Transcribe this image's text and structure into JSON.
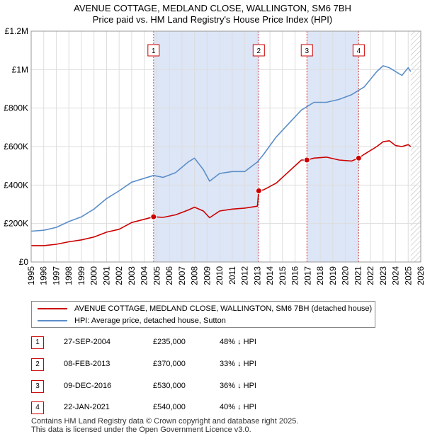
{
  "title_line1": "AVENUE COTTAGE, MEDLAND CLOSE, WALLINGTON, SM6 7BH",
  "title_line2": "Price paid vs. HM Land Registry's House Price Index (HPI)",
  "legend": {
    "property": "AVENUE COTTAGE, MEDLAND CLOSE, WALLINGTON, SM6 7BH (detached house)",
    "hpi": "HPI: Average price, detached house, Sutton"
  },
  "transactions": [
    {
      "num": "1",
      "date": "27-SEP-2004",
      "price": "£235,000",
      "hpi": "48% ↓ HPI"
    },
    {
      "num": "2",
      "date": "08-FEB-2013",
      "price": "£370,000",
      "hpi": "33% ↓ HPI"
    },
    {
      "num": "3",
      "date": "09-DEC-2016",
      "price": "£530,000",
      "hpi": "36% ↓ HPI"
    },
    {
      "num": "4",
      "date": "22-JAN-2021",
      "price": "£540,000",
      "hpi": "40% ↓ HPI"
    }
  ],
  "footer": {
    "line1": "Contains HM Land Registry data © Crown copyright and database right 2025.",
    "line2": "This data is licensed under the Open Government Licence v3.0."
  },
  "colors": {
    "property": "#cc0000",
    "hpi": "#5b8ec9",
    "shade": "#dde6f6",
    "grid": "#dddddd"
  },
  "chart_data": {
    "type": "line",
    "title": "AVENUE COTTAGE, MEDLAND CLOSE, WALLINGTON, SM6 7BH — Price paid vs. HM Land Registry's House Price Index (HPI)",
    "xlabel": "",
    "ylabel": "",
    "xlim": [
      1995,
      2026
    ],
    "ylim": [
      0,
      1200000
    ],
    "x_ticks": [
      1995,
      1996,
      1997,
      1998,
      1999,
      2000,
      2001,
      2002,
      2003,
      2004,
      2005,
      2006,
      2007,
      2008,
      2009,
      2010,
      2011,
      2012,
      2013,
      2014,
      2015,
      2016,
      2017,
      2018,
      2019,
      2020,
      2021,
      2022,
      2023,
      2024,
      2025,
      2026
    ],
    "y_ticks": [
      {
        "value": 0,
        "label": "£0"
      },
      {
        "value": 200000,
        "label": "£200K"
      },
      {
        "value": 400000,
        "label": "£400K"
      },
      {
        "value": 600000,
        "label": "£600K"
      },
      {
        "value": 800000,
        "label": "£800K"
      },
      {
        "value": 1000000,
        "label": "£1M"
      },
      {
        "value": 1200000,
        "label": "£1.2M"
      }
    ],
    "grid": true,
    "shaded_periods": [
      [
        2004.74,
        2013.11
      ],
      [
        2016.94,
        2021.06
      ]
    ],
    "sales": [
      {
        "label": "1",
        "x": 2004.74,
        "y": 235000
      },
      {
        "label": "2",
        "x": 2013.11,
        "y": 370000
      },
      {
        "label": "3",
        "x": 2016.94,
        "y": 530000
      },
      {
        "label": "4",
        "x": 2021.06,
        "y": 540000
      }
    ],
    "series": [
      {
        "name": "AVENUE COTTAGE, MEDLAND CLOSE, WALLINGTON, SM6 7BH (detached house)",
        "x": [
          1995.0,
          1996.0,
          1997.0,
          1998.0,
          1999.0,
          2000.0,
          2001.0,
          2002.0,
          2003.0,
          2004.0,
          2004.74,
          2005.5,
          2006.5,
          2007.5,
          2008.0,
          2008.7,
          2009.2,
          2010.0,
          2011.0,
          2012.0,
          2013.0,
          2013.11,
          2013.5,
          2014.5,
          2015.5,
          2016.5,
          2016.94,
          2017.5,
          2018.5,
          2019.5,
          2020.5,
          2021.06,
          2021.5,
          2022.5,
          2023.0,
          2023.5,
          2024.0,
          2024.5,
          2025.0,
          2025.2
        ],
        "y": [
          85000,
          85000,
          92000,
          105000,
          115000,
          130000,
          155000,
          170000,
          205000,
          222000,
          235000,
          232000,
          245000,
          270000,
          285000,
          265000,
          230000,
          265000,
          275000,
          280000,
          290000,
          370000,
          375000,
          410000,
          470000,
          530000,
          530000,
          540000,
          545000,
          530000,
          525000,
          540000,
          560000,
          600000,
          625000,
          630000,
          605000,
          600000,
          610000,
          600000
        ]
      },
      {
        "name": "HPI: Average price, detached house, Sutton",
        "x": [
          1995.0,
          1996.0,
          1997.0,
          1998.0,
          1999.0,
          2000.0,
          2001.0,
          2002.0,
          2003.0,
          2004.0,
          2004.74,
          2005.5,
          2006.5,
          2007.5,
          2008.0,
          2008.7,
          2009.2,
          2010.0,
          2011.0,
          2012.0,
          2013.0,
          2013.5,
          2014.5,
          2015.5,
          2016.5,
          2017.5,
          2018.5,
          2019.5,
          2020.5,
          2021.5,
          2022.5,
          2023.0,
          2023.5,
          2024.0,
          2024.5,
          2025.0,
          2025.2
        ],
        "y": [
          160000,
          165000,
          180000,
          210000,
          235000,
          275000,
          330000,
          370000,
          415000,
          435000,
          450000,
          440000,
          465000,
          520000,
          540000,
          480000,
          420000,
          460000,
          470000,
          470000,
          520000,
          560000,
          650000,
          720000,
          790000,
          830000,
          830000,
          845000,
          870000,
          910000,
          990000,
          1020000,
          1010000,
          990000,
          970000,
          1010000,
          990000
        ]
      }
    ]
  }
}
